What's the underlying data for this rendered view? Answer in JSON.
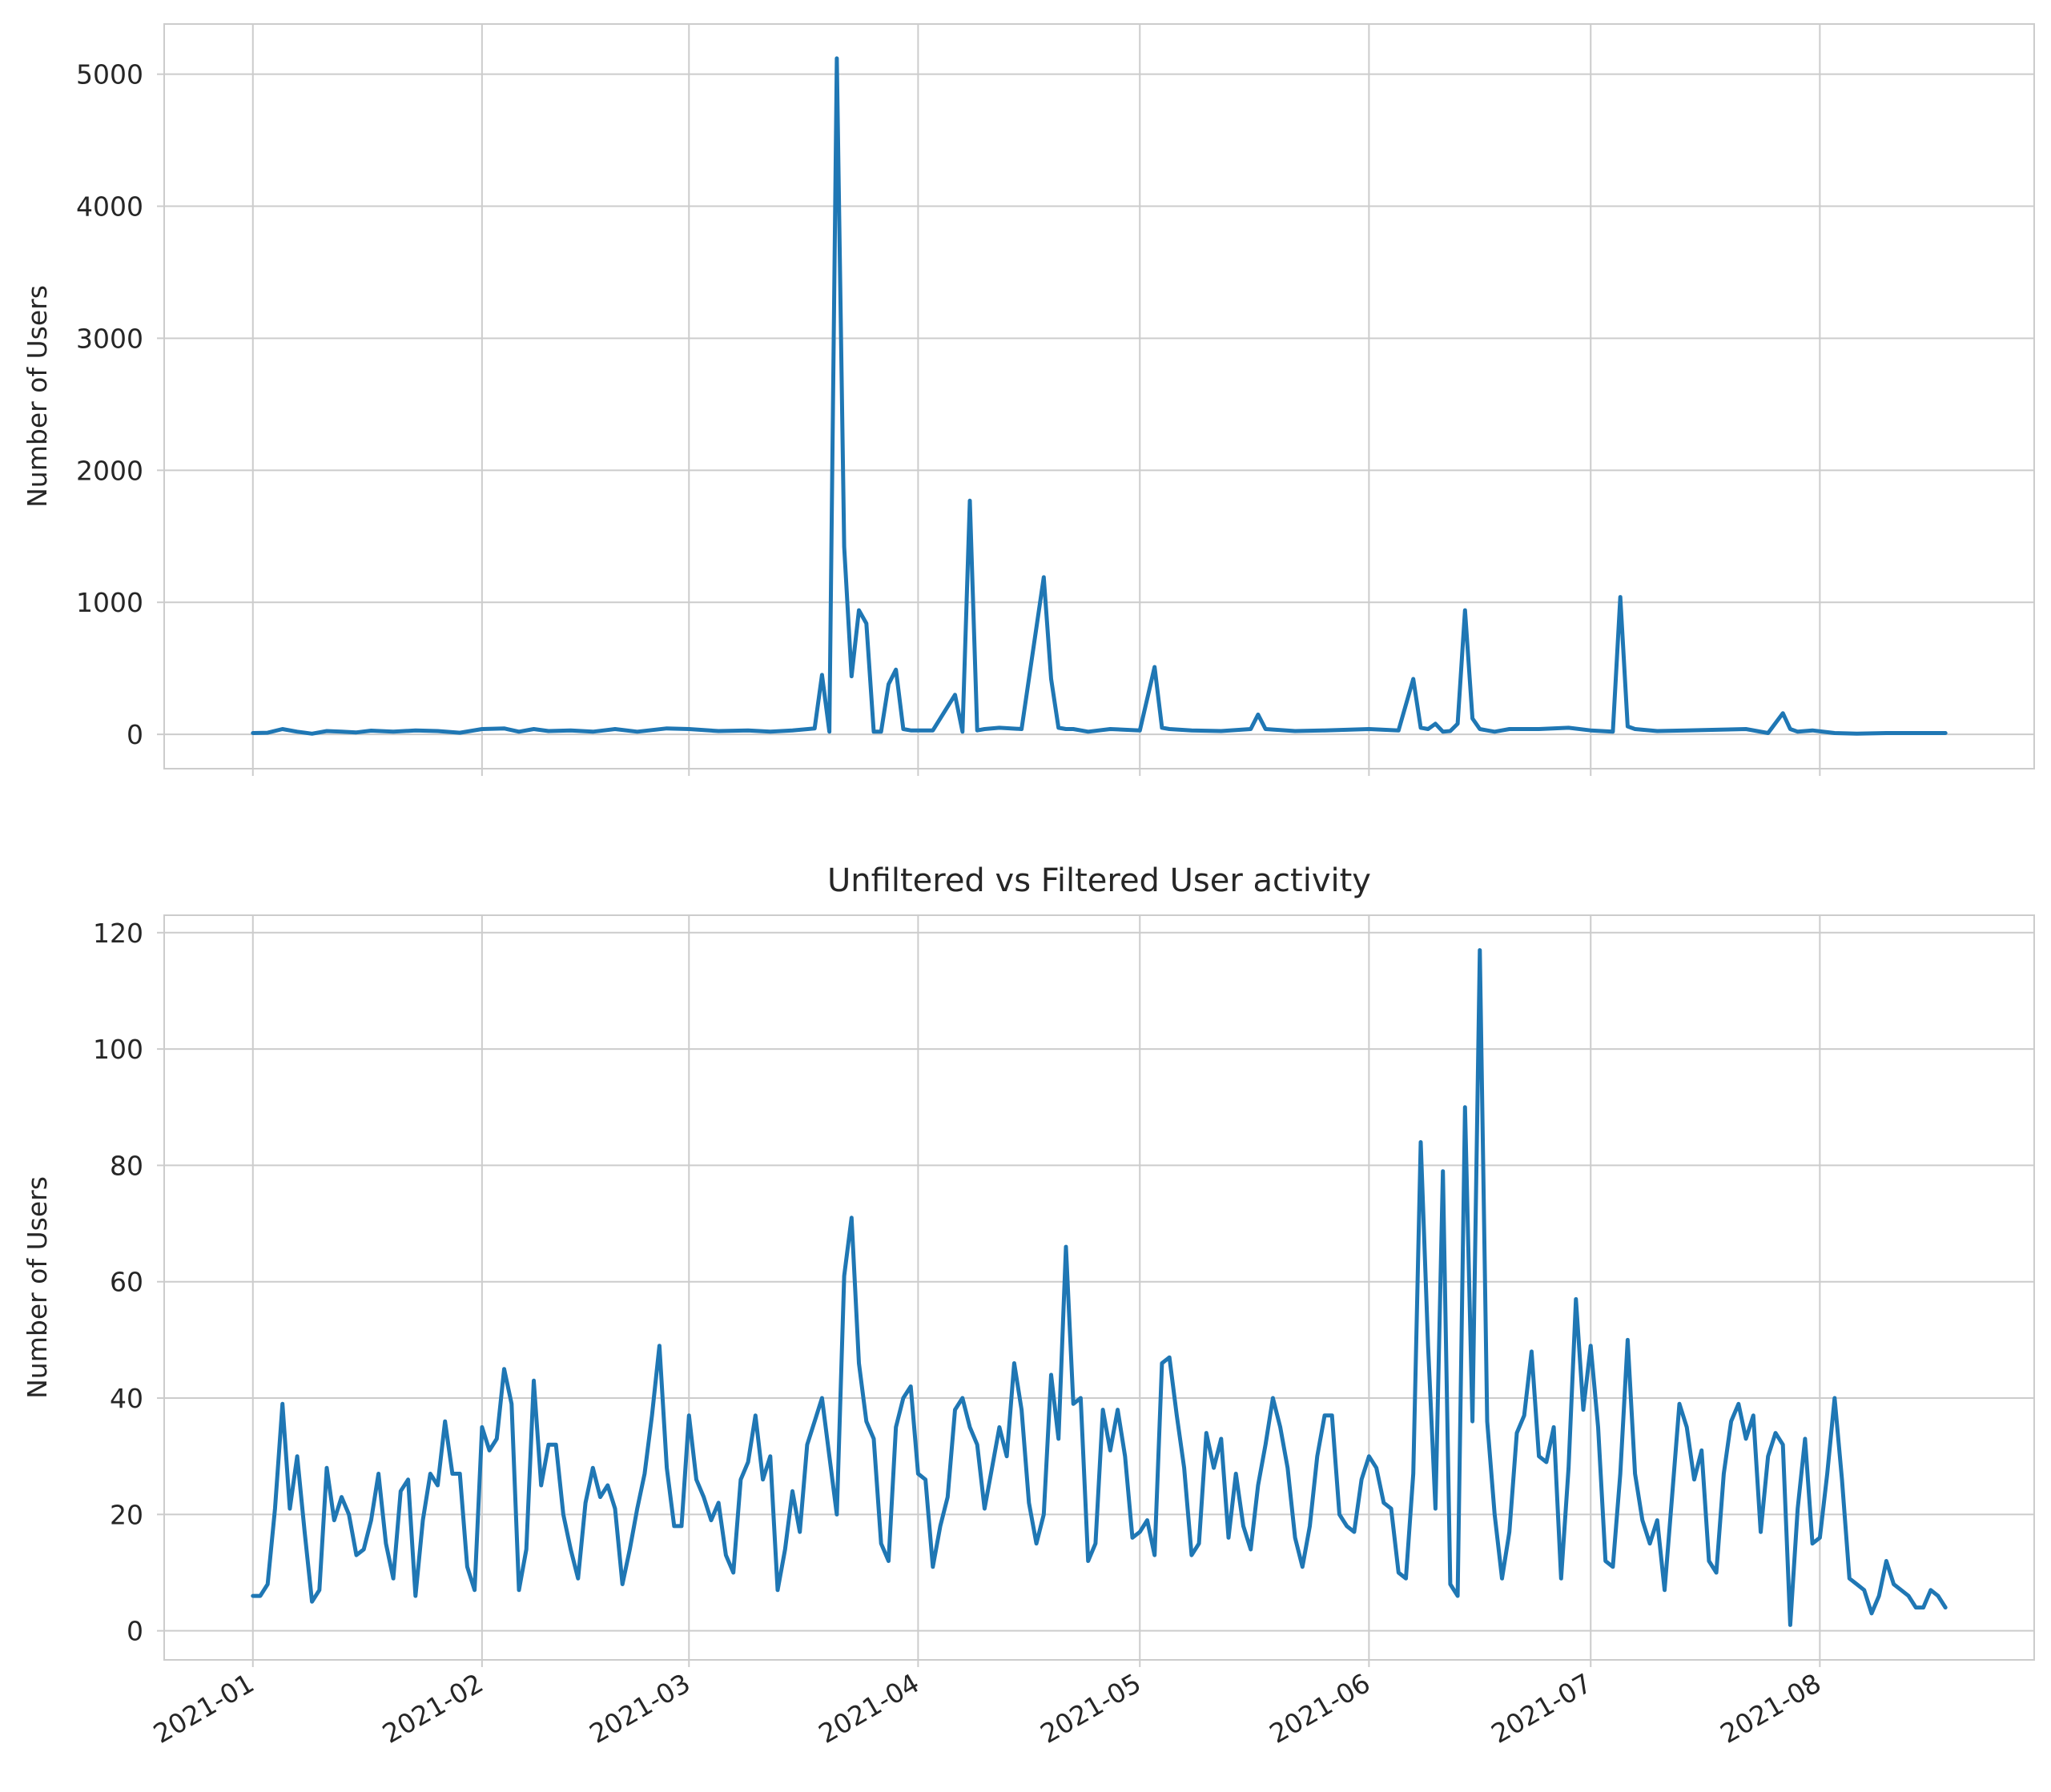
{
  "chart_data": [
    {
      "type": "line",
      "title": "",
      "xlabel": "",
      "ylabel": "Number of Users",
      "ylim": [
        -260,
        5380
      ],
      "yticks": [
        0,
        1000,
        2000,
        3000,
        4000,
        5000
      ],
      "xlim": [
        "2020-12-20",
        "2021-08-30"
      ],
      "xticks": [
        "2021-01",
        "2021-02",
        "2021-03",
        "2021-04",
        "2021-05",
        "2021-06",
        "2021-07",
        "2021-08"
      ],
      "grid": true,
      "color": "#1f77b4",
      "series": [
        {
          "x": [
            "2021-01-01",
            "2021-01-03",
            "2021-01-05",
            "2021-01-07",
            "2021-01-09",
            "2021-01-11",
            "2021-01-13",
            "2021-01-15",
            "2021-01-17",
            "2021-01-20",
            "2021-01-23",
            "2021-01-26",
            "2021-01-29",
            "2021-02-01",
            "2021-02-04",
            "2021-02-06",
            "2021-02-08",
            "2021-02-10",
            "2021-02-13",
            "2021-02-16",
            "2021-02-19",
            "2021-02-22",
            "2021-02-26",
            "2021-03-01",
            "2021-03-05",
            "2021-03-09",
            "2021-03-12",
            "2021-03-15",
            "2021-03-18",
            "2021-03-19",
            "2021-03-20",
            "2021-03-21",
            "2021-03-22",
            "2021-03-23",
            "2021-03-24",
            "2021-03-25",
            "2021-03-26",
            "2021-03-27",
            "2021-03-28",
            "2021-03-29",
            "2021-03-30",
            "2021-03-31",
            "2021-04-03",
            "2021-04-06",
            "2021-04-07",
            "2021-04-08",
            "2021-04-09",
            "2021-04-10",
            "2021-04-12",
            "2021-04-15",
            "2021-04-18",
            "2021-04-19",
            "2021-04-20",
            "2021-04-21",
            "2021-04-22",
            "2021-04-24",
            "2021-04-27",
            "2021-05-01",
            "2021-05-03",
            "2021-05-04",
            "2021-05-05",
            "2021-05-08",
            "2021-05-12",
            "2021-05-16",
            "2021-05-17",
            "2021-05-18",
            "2021-05-22",
            "2021-05-26",
            "2021-06-01",
            "2021-06-05",
            "2021-06-07",
            "2021-06-08",
            "2021-06-09",
            "2021-06-10",
            "2021-06-11",
            "2021-06-12",
            "2021-06-13",
            "2021-06-14",
            "2021-06-15",
            "2021-06-16",
            "2021-06-17",
            "2021-06-18",
            "2021-06-20",
            "2021-06-24",
            "2021-06-28",
            "2021-07-01",
            "2021-07-04",
            "2021-07-05",
            "2021-07-06",
            "2021-07-07",
            "2021-07-10",
            "2021-07-14",
            "2021-07-18",
            "2021-07-22",
            "2021-07-25",
            "2021-07-27",
            "2021-07-28",
            "2021-07-29",
            "2021-07-31",
            "2021-08-03",
            "2021-08-06",
            "2021-08-10",
            "2021-08-14",
            "2021-08-18"
          ],
          "values": [
            10,
            12,
            40,
            20,
            5,
            25,
            20,
            15,
            28,
            20,
            30,
            25,
            12,
            40,
            45,
            20,
            40,
            25,
            30,
            20,
            40,
            20,
            45,
            40,
            25,
            30,
            20,
            30,
            45,
            450,
            20,
            5120,
            1420,
            440,
            940,
            840,
            20,
            20,
            380,
            490,
            40,
            30,
            30,
            300,
            20,
            1770,
            30,
            40,
            50,
            40,
            1190,
            420,
            50,
            40,
            40,
            20,
            40,
            30,
            510,
            50,
            40,
            30,
            25,
            40,
            150,
            40,
            25,
            30,
            40,
            30,
            420,
            50,
            40,
            80,
            20,
            25,
            80,
            940,
            120,
            40,
            30,
            20,
            40,
            40,
            50,
            30,
            20,
            1040,
            60,
            40,
            25,
            30,
            35,
            40,
            10,
            160,
            40,
            20,
            30,
            10,
            5,
            10,
            10,
            10
          ]
        }
      ]
    },
    {
      "type": "line",
      "title": "Unfiltered vs Filtered User activity",
      "xlabel": "",
      "ylabel": "Number of Users",
      "ylim": [
        -5,
        123
      ],
      "yticks": [
        0,
        20,
        40,
        60,
        80,
        100,
        120
      ],
      "xlim": [
        "2020-12-20",
        "2021-08-30"
      ],
      "xticks": [
        "2021-01",
        "2021-02",
        "2021-03",
        "2021-04",
        "2021-05",
        "2021-06",
        "2021-07",
        "2021-08"
      ],
      "grid": true,
      "color": "#1f77b4",
      "series": [
        {
          "x": [
            "2021-01-01",
            "2021-01-02",
            "2021-01-03",
            "2021-01-04",
            "2021-01-05",
            "2021-01-06",
            "2021-01-07",
            "2021-01-08",
            "2021-01-09",
            "2021-01-10",
            "2021-01-11",
            "2021-01-12",
            "2021-01-13",
            "2021-01-14",
            "2021-01-15",
            "2021-01-16",
            "2021-01-17",
            "2021-01-18",
            "2021-01-19",
            "2021-01-20",
            "2021-01-21",
            "2021-01-22",
            "2021-01-23",
            "2021-01-24",
            "2021-01-25",
            "2021-01-26",
            "2021-01-27",
            "2021-01-28",
            "2021-01-29",
            "2021-01-30",
            "2021-01-31",
            "2021-02-01",
            "2021-02-02",
            "2021-02-03",
            "2021-02-04",
            "2021-02-05",
            "2021-02-06",
            "2021-02-07",
            "2021-02-08",
            "2021-02-09",
            "2021-02-10",
            "2021-02-11",
            "2021-02-12",
            "2021-02-13",
            "2021-02-14",
            "2021-02-15",
            "2021-02-16",
            "2021-02-17",
            "2021-02-18",
            "2021-02-19",
            "2021-02-20",
            "2021-02-21",
            "2021-02-22",
            "2021-02-23",
            "2021-02-24",
            "2021-02-25",
            "2021-02-26",
            "2021-02-27",
            "2021-02-28",
            "2021-03-01",
            "2021-03-02",
            "2021-03-03",
            "2021-03-04",
            "2021-03-05",
            "2021-03-06",
            "2021-03-07",
            "2021-03-08",
            "2021-03-09",
            "2021-03-10",
            "2021-03-11",
            "2021-03-12",
            "2021-03-13",
            "2021-03-14",
            "2021-03-15",
            "2021-03-16",
            "2021-03-17",
            "2021-03-18",
            "2021-03-19",
            "2021-03-20",
            "2021-03-21",
            "2021-03-22",
            "2021-03-23",
            "2021-03-24",
            "2021-03-25",
            "2021-03-26",
            "2021-03-27",
            "2021-03-28",
            "2021-03-29",
            "2021-03-30",
            "2021-03-31",
            "2021-04-01",
            "2021-04-02",
            "2021-04-03",
            "2021-04-04",
            "2021-04-05",
            "2021-04-06",
            "2021-04-07",
            "2021-04-08",
            "2021-04-09",
            "2021-04-10",
            "2021-04-11",
            "2021-04-12",
            "2021-04-13",
            "2021-04-14",
            "2021-04-15",
            "2021-04-16",
            "2021-04-17",
            "2021-04-18",
            "2021-04-19",
            "2021-04-20",
            "2021-04-21",
            "2021-04-22",
            "2021-04-23",
            "2021-04-24",
            "2021-04-25",
            "2021-04-26",
            "2021-04-27",
            "2021-04-28",
            "2021-04-29",
            "2021-04-30",
            "2021-05-01",
            "2021-05-02",
            "2021-05-03",
            "2021-05-04",
            "2021-05-05",
            "2021-05-06",
            "2021-05-07",
            "2021-05-08",
            "2021-05-09",
            "2021-05-10",
            "2021-05-11",
            "2021-05-12",
            "2021-05-13",
            "2021-05-14",
            "2021-05-15",
            "2021-05-16",
            "2021-05-17",
            "2021-05-18",
            "2021-05-19",
            "2021-05-20",
            "2021-05-21",
            "2021-05-22",
            "2021-05-23",
            "2021-05-24",
            "2021-05-25",
            "2021-05-26",
            "2021-05-27",
            "2021-05-28",
            "2021-05-29",
            "2021-05-30",
            "2021-05-31",
            "2021-06-01",
            "2021-06-02",
            "2021-06-03",
            "2021-06-04",
            "2021-06-05",
            "2021-06-06",
            "2021-06-07",
            "2021-06-08",
            "2021-06-09",
            "2021-06-10",
            "2021-06-11",
            "2021-06-12",
            "2021-06-13",
            "2021-06-14",
            "2021-06-15",
            "2021-06-16",
            "2021-06-17",
            "2021-06-18",
            "2021-06-19",
            "2021-06-20",
            "2021-06-21",
            "2021-06-22",
            "2021-06-23",
            "2021-06-24",
            "2021-06-25",
            "2021-06-26",
            "2021-06-27",
            "2021-06-28",
            "2021-06-29",
            "2021-06-30",
            "2021-07-01",
            "2021-07-02",
            "2021-07-03",
            "2021-07-04",
            "2021-07-05",
            "2021-07-06",
            "2021-07-07",
            "2021-07-08",
            "2021-07-09",
            "2021-07-10",
            "2021-07-11",
            "2021-07-12",
            "2021-07-13",
            "2021-07-14",
            "2021-07-15",
            "2021-07-16",
            "2021-07-17",
            "2021-07-18",
            "2021-07-19",
            "2021-07-20",
            "2021-07-21",
            "2021-07-22",
            "2021-07-23",
            "2021-07-24",
            "2021-07-25",
            "2021-07-26",
            "2021-07-27",
            "2021-07-28",
            "2021-07-29",
            "2021-07-30",
            "2021-07-31",
            "2021-08-01",
            "2021-08-02",
            "2021-08-03",
            "2021-08-04",
            "2021-08-05",
            "2021-08-06",
            "2021-08-07",
            "2021-08-08",
            "2021-08-09",
            "2021-08-10",
            "2021-08-11",
            "2021-08-12",
            "2021-08-13",
            "2021-08-14",
            "2021-08-15",
            "2021-08-16",
            "2021-08-17",
            "2021-08-18"
          ],
          "values": [
            6,
            6,
            8,
            21,
            39,
            21,
            30,
            17,
            5,
            7,
            28,
            19,
            23,
            20,
            13,
            14,
            19,
            27,
            15,
            9,
            24,
            26,
            6,
            19,
            27,
            25,
            36,
            27,
            27,
            11,
            7,
            35,
            31,
            33,
            45,
            39,
            7,
            14,
            43,
            25,
            32,
            32,
            20,
            14,
            9,
            22,
            28,
            23,
            25,
            21,
            8,
            14,
            21,
            27,
            37,
            49,
            28,
            18,
            18,
            37,
            26,
            23,
            19,
            22,
            13,
            10,
            26,
            29,
            37,
            26,
            30,
            7,
            14,
            24,
            17,
            32,
            36,
            40,
            30,
            20,
            61,
            71,
            46,
            36,
            33,
            15,
            12,
            35,
            40,
            42,
            27,
            26,
            11,
            18,
            23,
            38,
            40,
            35,
            32,
            21,
            28,
            35,
            30,
            46,
            38,
            22,
            15,
            20,
            44,
            33,
            66,
            39,
            40,
            12,
            15,
            38,
            31,
            38,
            30,
            16,
            17,
            19,
            13,
            46,
            47,
            37,
            28,
            13,
            15,
            34,
            28,
            33,
            16,
            27,
            18,
            14,
            25,
            32,
            40,
            35,
            28,
            16,
            11,
            18,
            30,
            37,
            37,
            20,
            18,
            17,
            26,
            30,
            28,
            22,
            21,
            10,
            9,
            27,
            84,
            49,
            21,
            79,
            8,
            6,
            90,
            36,
            117,
            36,
            20,
            9,
            17,
            34,
            37,
            48,
            30,
            29,
            35,
            9,
            28,
            57,
            38,
            49,
            35,
            12,
            11,
            27,
            50,
            27,
            19,
            15,
            19,
            7,
            23,
            39,
            35,
            26,
            31,
            12,
            10,
            27,
            36,
            39,
            33,
            37,
            17,
            30,
            34,
            32,
            1,
            21,
            33,
            15,
            16,
            27,
            40,
            26,
            9,
            8,
            7,
            3,
            6,
            12,
            8,
            7,
            6,
            4,
            4,
            7,
            6,
            4
          ]
        }
      ]
    }
  ]
}
